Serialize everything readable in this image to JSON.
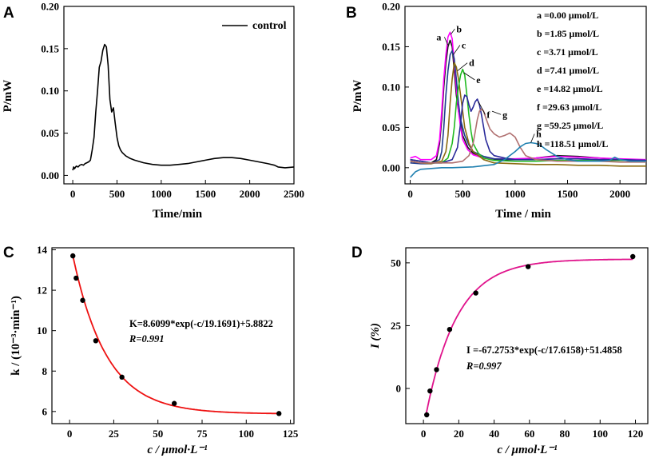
{
  "panels": {
    "A": {
      "letter": "A"
    },
    "B": {
      "letter": "B"
    },
    "C": {
      "letter": "C"
    },
    "D": {
      "letter": "D"
    }
  },
  "chart_data": [
    {
      "id": "A",
      "type": "line",
      "title": "",
      "xlabel": "Time/min",
      "ylabel": "P/mW",
      "xlim": [
        -100,
        2500
      ],
      "ylim": [
        -0.01,
        0.2
      ],
      "xticks": [
        "0",
        "500",
        "1000",
        "1500",
        "2000",
        "2500"
      ],
      "yticks": [
        "0.00",
        "0.05",
        "0.10",
        "0.15",
        "0.20"
      ],
      "legend": "top-right",
      "series": [
        {
          "name": "control",
          "color": "#000000",
          "x": [
            0,
            10,
            20,
            40,
            60,
            80,
            100,
            120,
            140,
            160,
            180,
            200,
            220,
            240,
            260,
            280,
            300,
            320,
            340,
            360,
            380,
            400,
            420,
            440,
            460,
            480,
            500,
            520,
            540,
            560,
            600,
            650,
            700,
            800,
            900,
            1000,
            1100,
            1200,
            1300,
            1400,
            1500,
            1600,
            1700,
            1800,
            1900,
            2000,
            2100,
            2200,
            2280,
            2320,
            2400,
            2500
          ],
          "y": [
            0.006,
            0.01,
            0.008,
            0.011,
            0.01,
            0.012,
            0.013,
            0.012,
            0.014,
            0.015,
            0.016,
            0.018,
            0.03,
            0.045,
            0.075,
            0.1,
            0.128,
            0.135,
            0.148,
            0.155,
            0.152,
            0.13,
            0.09,
            0.075,
            0.08,
            0.062,
            0.045,
            0.035,
            0.03,
            0.027,
            0.023,
            0.02,
            0.018,
            0.015,
            0.013,
            0.012,
            0.012,
            0.013,
            0.014,
            0.016,
            0.018,
            0.02,
            0.021,
            0.021,
            0.02,
            0.018,
            0.016,
            0.014,
            0.012,
            0.01,
            0.009,
            0.01
          ]
        }
      ]
    },
    {
      "id": "B",
      "type": "line",
      "title": "",
      "xlabel": "Time / min",
      "ylabel": "P/mW",
      "xlim": [
        -50,
        2250
      ],
      "ylim": [
        -0.02,
        0.2
      ],
      "xticks": [
        "0",
        "500",
        "1000",
        "1500",
        "2000"
      ],
      "yticks": [
        "0.00",
        "0.05",
        "0.10",
        "0.15",
        "0.20"
      ],
      "legend": "top-right",
      "series": [
        {
          "name": "a =0.00 μmol/L",
          "label": "a",
          "color": "#1a1a1a",
          "x": [
            0,
            100,
            200,
            250,
            280,
            300,
            320,
            340,
            360,
            380,
            400,
            420,
            440,
            460,
            480,
            500,
            550,
            600,
            700,
            800,
            1000,
            1200,
            1400,
            1600,
            1800,
            2000,
            2250
          ],
          "y": [
            0.008,
            0.006,
            0.006,
            0.01,
            0.03,
            0.06,
            0.1,
            0.13,
            0.15,
            0.158,
            0.15,
            0.12,
            0.09,
            0.07,
            0.055,
            0.04,
            0.025,
            0.018,
            0.012,
            0.01,
            0.01,
            0.012,
            0.015,
            0.014,
            0.012,
            0.01,
            0.009
          ]
        },
        {
          "name": "b =1.85 μmol/L",
          "label": "b",
          "color": "#ff00ff",
          "x": [
            0,
            50,
            100,
            200,
            250,
            280,
            300,
            320,
            340,
            360,
            380,
            400,
            420,
            440,
            460,
            480,
            500,
            550,
            600,
            700,
            800,
            1000,
            1200,
            1400,
            1600,
            1800,
            2000,
            2250
          ],
          "y": [
            0.012,
            0.014,
            0.01,
            0.01,
            0.015,
            0.035,
            0.07,
            0.11,
            0.14,
            0.162,
            0.168,
            0.16,
            0.13,
            0.1,
            0.07,
            0.05,
            0.035,
            0.022,
            0.016,
            0.012,
            0.011,
            0.011,
            0.012,
            0.014,
            0.013,
            0.012,
            0.011,
            0.01
          ]
        },
        {
          "name": "c =3.71 μmol/L",
          "label": "c",
          "color": "#1f3d8f",
          "x": [
            0,
            100,
            200,
            280,
            300,
            320,
            340,
            360,
            380,
            400,
            420,
            440,
            460,
            480,
            520,
            560,
            600,
            700,
            800,
            1000,
            1200,
            1400,
            1600,
            1800,
            2000,
            2250
          ],
          "y": [
            0.006,
            0.005,
            0.005,
            0.01,
            0.02,
            0.05,
            0.09,
            0.12,
            0.14,
            0.145,
            0.135,
            0.11,
            0.08,
            0.06,
            0.04,
            0.028,
            0.02,
            0.014,
            0.011,
            0.01,
            0.01,
            0.011,
            0.011,
            0.01,
            0.01,
            0.009
          ]
        },
        {
          "name": "d =7.41 μmol/L",
          "label": "d",
          "color": "#8b6b10",
          "x": [
            0,
            100,
            200,
            300,
            340,
            360,
            380,
            400,
            420,
            440,
            460,
            480,
            500,
            520,
            560,
            600,
            650,
            700,
            800,
            1000,
            1200,
            1400,
            1600,
            1800,
            2000,
            2250
          ],
          "y": [
            0.008,
            0.006,
            0.005,
            0.008,
            0.02,
            0.04,
            0.08,
            0.11,
            0.13,
            0.125,
            0.11,
            0.09,
            0.07,
            0.05,
            0.03,
            0.02,
            0.015,
            0.01,
            0.006,
            0.005,
            0.004,
            0.004,
            0.003,
            0.003,
            0.002,
            0.002
          ]
        },
        {
          "name": "e =14.82 μmol/L",
          "label": "e",
          "color": "#22bb22",
          "x": [
            0,
            100,
            200,
            300,
            360,
            400,
            420,
            440,
            460,
            480,
            500,
            520,
            540,
            560,
            580,
            600,
            650,
            700,
            800,
            1000,
            1200,
            1400,
            1600,
            1800,
            2000,
            2250
          ],
          "y": [
            0.01,
            0.008,
            0.006,
            0.006,
            0.012,
            0.03,
            0.05,
            0.08,
            0.1,
            0.115,
            0.122,
            0.115,
            0.09,
            0.065,
            0.045,
            0.03,
            0.018,
            0.012,
            0.009,
            0.008,
            0.008,
            0.009,
            0.009,
            0.009,
            0.009,
            0.009
          ]
        },
        {
          "name": "f =29.63 μmol/L",
          "label": "f",
          "color": "#2a2a9a",
          "x": [
            0,
            100,
            200,
            300,
            400,
            450,
            480,
            500,
            520,
            540,
            560,
            580,
            600,
            620,
            640,
            660,
            680,
            700,
            720,
            760,
            800,
            900,
            1000,
            1200,
            1400,
            1600,
            1800,
            2000,
            2250
          ],
          "y": [
            0.01,
            0.008,
            0.006,
            0.006,
            0.01,
            0.025,
            0.055,
            0.08,
            0.09,
            0.088,
            0.078,
            0.07,
            0.075,
            0.082,
            0.085,
            0.078,
            0.065,
            0.05,
            0.035,
            0.02,
            0.015,
            0.012,
            0.01,
            0.01,
            0.011,
            0.011,
            0.01,
            0.01,
            0.009
          ]
        },
        {
          "name": "g =59.25 μmol/L",
          "label": "g",
          "color": "#b07070",
          "x": [
            0,
            100,
            200,
            400,
            500,
            560,
            600,
            620,
            640,
            660,
            680,
            700,
            720,
            740,
            760,
            800,
            850,
            900,
            950,
            1000,
            1050,
            1100,
            1200,
            1400,
            1600,
            1800,
            2000,
            2250
          ],
          "y": [
            0.008,
            0.006,
            0.006,
            0.006,
            0.008,
            0.015,
            0.03,
            0.045,
            0.06,
            0.07,
            0.073,
            0.07,
            0.062,
            0.055,
            0.048,
            0.042,
            0.038,
            0.04,
            0.043,
            0.038,
            0.025,
            0.015,
            0.01,
            0.008,
            0.008,
            0.008,
            0.007,
            0.007
          ]
        },
        {
          "name": "h =118.51 μmol/L",
          "label": "h",
          "color": "#2080b0",
          "x": [
            0,
            50,
            100,
            200,
            300,
            400,
            600,
            800,
            900,
            1000,
            1050,
            1100,
            1150,
            1200,
            1250,
            1300,
            1400,
            1500,
            1600,
            1700,
            1800,
            1900,
            1950,
            2000,
            2100,
            2250
          ],
          "y": [
            -0.012,
            -0.005,
            -0.002,
            -0.001,
            0.0,
            0.0,
            0.001,
            0.004,
            0.01,
            0.02,
            0.026,
            0.03,
            0.031,
            0.03,
            0.027,
            0.022,
            0.014,
            0.01,
            0.008,
            0.008,
            0.008,
            0.009,
            0.013,
            0.01,
            0.008,
            0.008
          ]
        }
      ],
      "annotations": [
        "a",
        "b",
        "c",
        "d",
        "e",
        "f",
        "g",
        "h"
      ]
    },
    {
      "id": "C",
      "type": "scatter",
      "title": "",
      "xlabel": "c / μmol·L⁻¹",
      "ylabel": "k / (10⁻³·min⁻¹)",
      "xlim": [
        -10,
        127
      ],
      "ylim": [
        5.4,
        14.1
      ],
      "xticks": [
        "0",
        "25",
        "50",
        "75",
        "100",
        "125"
      ],
      "yticks": [
        "6",
        "8",
        "10",
        "12",
        "14"
      ],
      "points": {
        "x": [
          1.85,
          3.71,
          7.41,
          14.82,
          29.63,
          59.25,
          118.51
        ],
        "y": [
          13.7,
          12.6,
          11.5,
          9.5,
          7.7,
          6.4,
          5.9
        ]
      },
      "fit": {
        "A": 8.6099,
        "tau": 19.1691,
        "c0": 5.8822,
        "color": "#ee1111"
      },
      "fit_equation": "K=8.6099*exp(-c/19.1691)+5.8822",
      "r_value": "R=0.991"
    },
    {
      "id": "D",
      "type": "scatter",
      "title": "",
      "xlabel": "c / μmol·L⁻¹",
      "ylabel": "I (%)",
      "xlim": [
        -10,
        127
      ],
      "ylim": [
        -14,
        56
      ],
      "xticks": [
        "0",
        "20",
        "40",
        "60",
        "80",
        "100",
        "120"
      ],
      "yticks": [
        "0",
        "25",
        "50"
      ],
      "points": {
        "x": [
          1.85,
          3.71,
          7.41,
          14.82,
          29.63,
          59.25,
          118.51
        ],
        "y": [
          -10.5,
          -1.0,
          7.5,
          23.5,
          38.0,
          48.5,
          52.5
        ]
      },
      "fit": {
        "A": -67.2753,
        "tau": 17.6158,
        "c0": 51.4858,
        "color": "#e0148c"
      },
      "fit_equation": "I =-67.2753*exp(-c/17.6158)+51.4858",
      "r_value": "R=0.997"
    }
  ]
}
